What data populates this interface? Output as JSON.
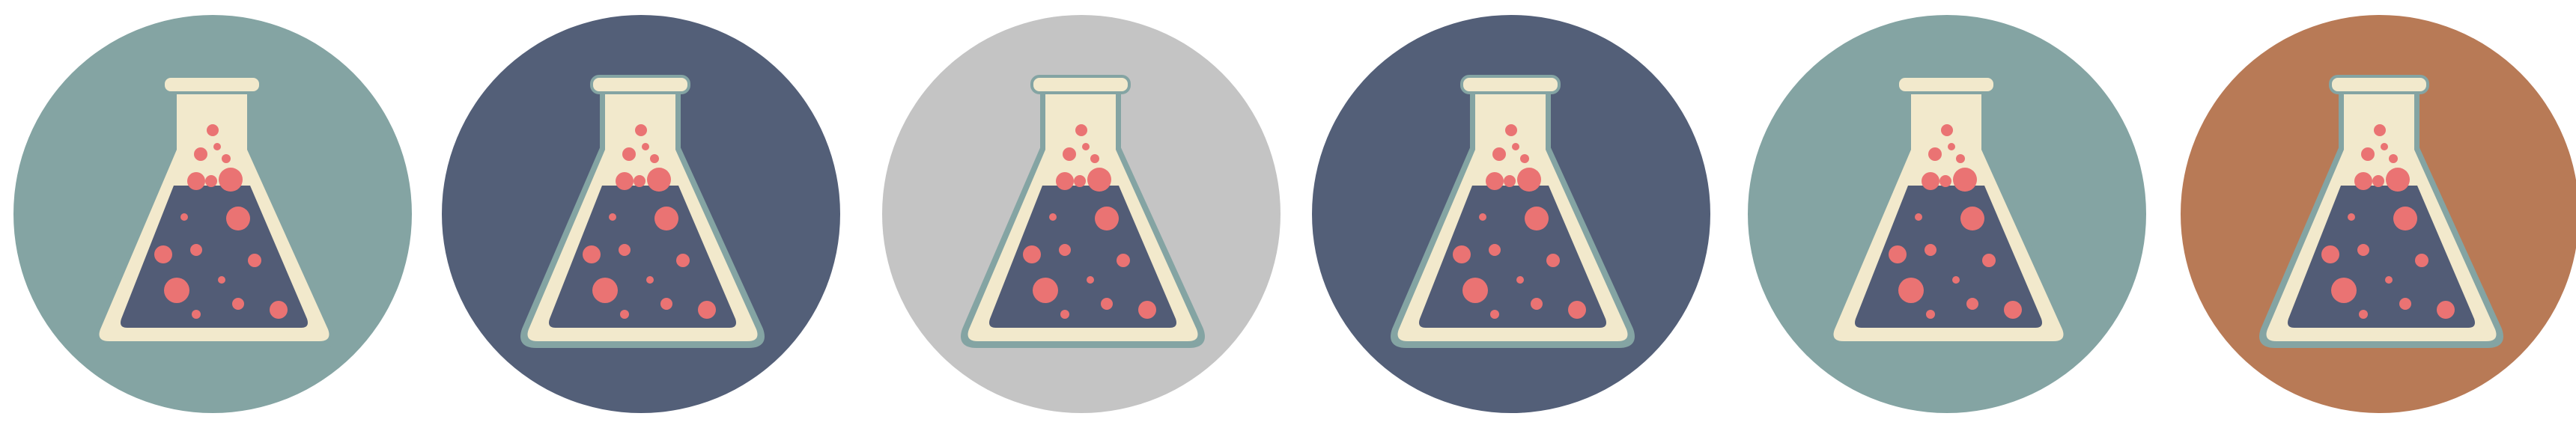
{
  "tiles": [
    {
      "icon": "flask-icon",
      "background": "#84a4a3",
      "outline": "#84a4a3"
    },
    {
      "icon": "flask-icon",
      "background": "#535f78",
      "outline": "#84a4a3"
    },
    {
      "icon": "flask-icon",
      "background": "#c4c4c4",
      "outline": "#84a4a3"
    },
    {
      "icon": "flask-icon",
      "background": "#535f78",
      "outline": "#84a4a3"
    },
    {
      "icon": "flask-icon",
      "background": "#84a4a3",
      "outline": "#84a4a3"
    },
    {
      "icon": "flask-icon",
      "background": "#b87a56",
      "outline": "#84a4a3"
    }
  ],
  "colors": {
    "glass": "#f2e9cc",
    "liquid": "#525c76",
    "bubble": "#ea7373"
  }
}
